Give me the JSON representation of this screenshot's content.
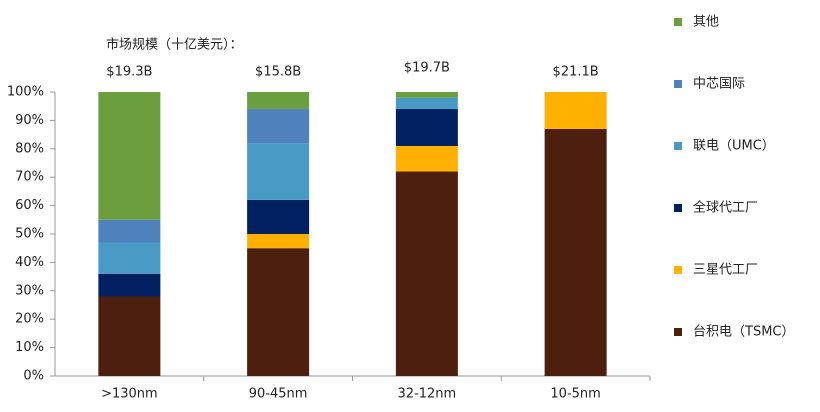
{
  "chart_data": {
    "type": "stacked_bar_100",
    "subtitle": "市场规模（十亿美元）：",
    "categories": [
      ">130nm",
      "90-45nm",
      "32-12nm",
      "10-5nm"
    ],
    "market_size_labels": [
      "$19.3B",
      "$15.8B",
      "$19.7B",
      "$21.1B"
    ],
    "series": [
      {
        "name": "台积电（TSMC）",
        "color": "#4d1f0e",
        "values": [
          28,
          45,
          72,
          87
        ]
      },
      {
        "name": "三星代工厂",
        "color": "#ffb000",
        "values": [
          0,
          5,
          9,
          13
        ]
      },
      {
        "name": "全球代工厂",
        "color": "#002060",
        "values": [
          8,
          12,
          13,
          0
        ]
      },
      {
        "name": "联电（UMC）",
        "color": "#4a9ac6",
        "values": [
          11,
          20,
          4,
          0
        ]
      },
      {
        "name": "中芯国际",
        "color": "#4f81bd",
        "values": [
          8,
          12,
          0,
          0
        ]
      },
      {
        "name": "其他",
        "color": "#6a9e3f",
        "values": [
          45,
          6,
          2,
          0
        ]
      }
    ],
    "ylim": [
      0,
      100
    ],
    "yticks": [
      {
        "value": 0,
        "label": "0%"
      },
      {
        "value": 10,
        "label": "10%"
      },
      {
        "value": 20,
        "label": "20%"
      },
      {
        "value": 30,
        "label": "30%"
      },
      {
        "value": 40,
        "label": "40%"
      },
      {
        "value": 50,
        "label": "50%"
      },
      {
        "value": 60,
        "label": "60%"
      },
      {
        "value": 70,
        "label": "70%"
      },
      {
        "value": 80,
        "label": "80%"
      },
      {
        "value": 90,
        "label": "90%"
      },
      {
        "value": 100,
        "label": "100%"
      }
    ],
    "legend": "right"
  }
}
